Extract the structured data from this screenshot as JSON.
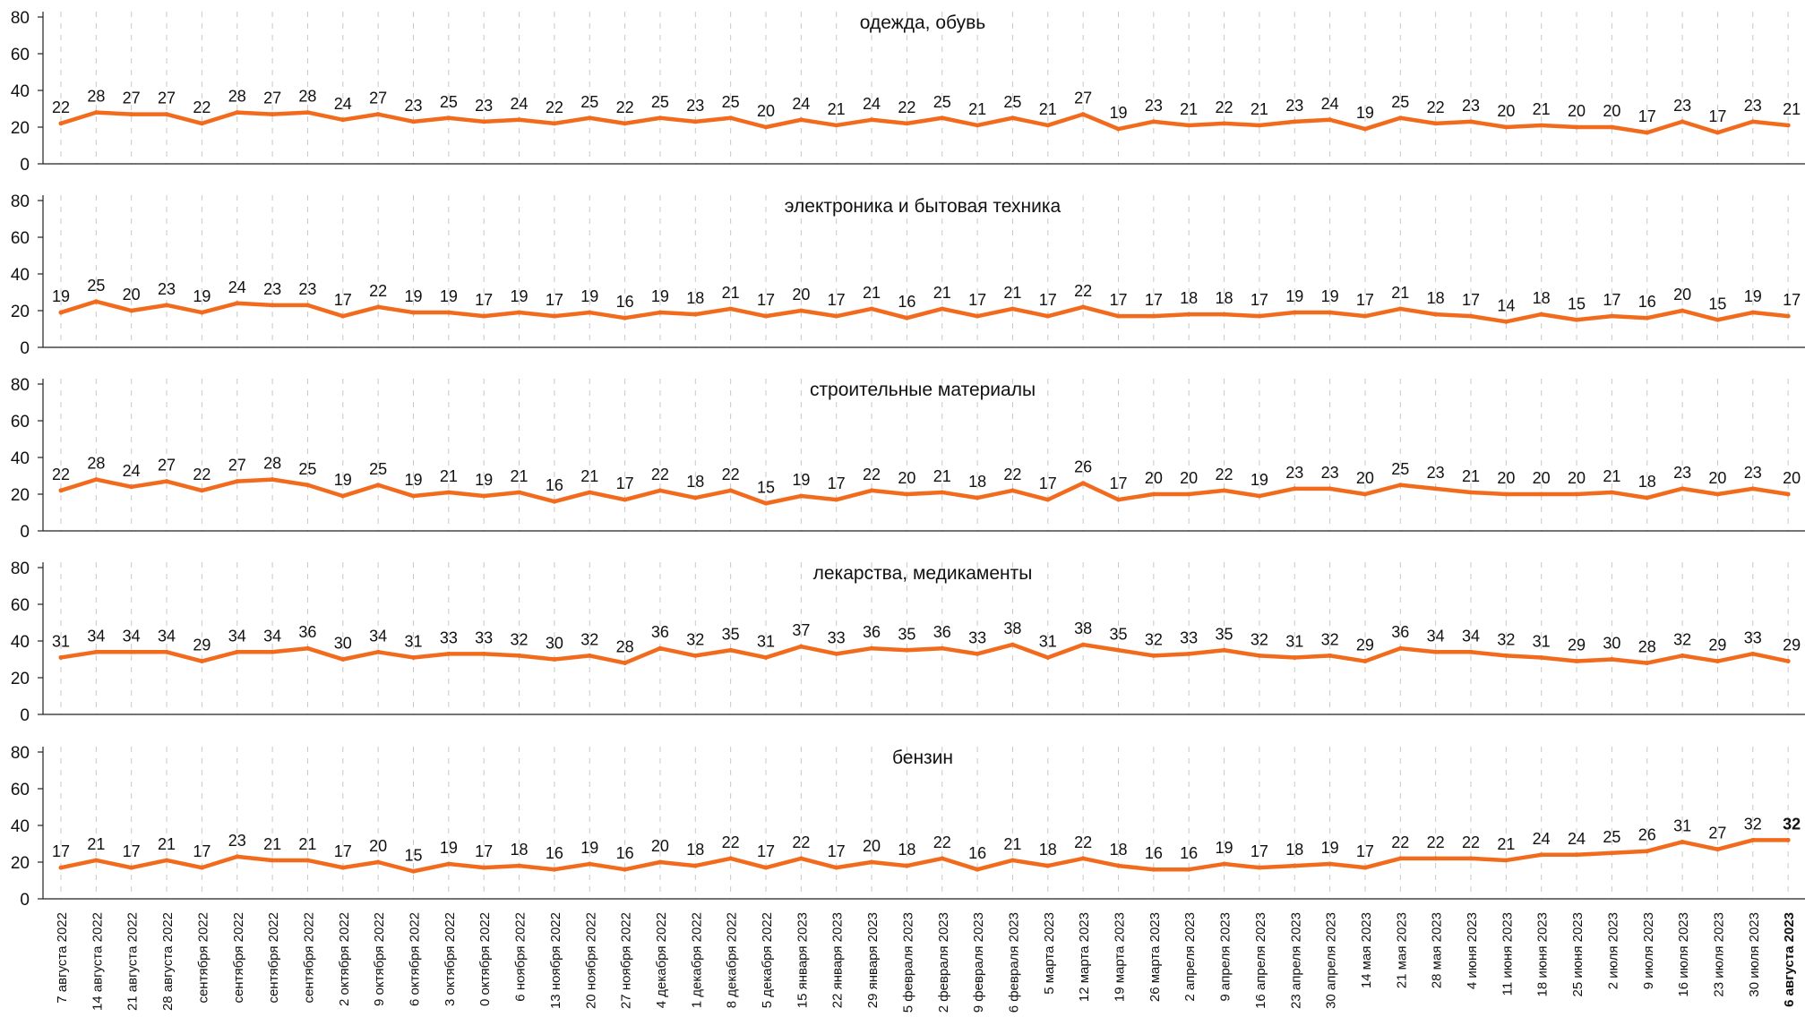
{
  "chart_data": {
    "type": "line",
    "colors": {
      "line": "#f26b1d",
      "axis": "#222222",
      "grid": "#c8c8c8",
      "text": "#111111"
    },
    "ylim": [
      0,
      80
    ],
    "yticks": [
      "0",
      "20",
      "40",
      "60",
      "80"
    ],
    "grid": "vertical dashed",
    "x": [
      "7 августа 2022",
      "14 августа 2022",
      "21 августа 2022",
      "28 августа 2022",
      "сентября 2022",
      "сентября 2022",
      "сентября 2022",
      "сентября 2022",
      "2 октября 2022",
      "9 октября 2022",
      "6 октября 2022",
      "3 октября 2022",
      "0 октября 2022",
      "6 ноября 2022",
      "13 ноября 2022",
      "20 ноября 2022",
      "27 ноября 2022",
      "4 декабря 2022",
      "1 декабря 2022",
      "8 декабря 2022",
      "5 декабря 2022",
      "15 января 2023",
      "22 января 2023",
      "29 января 2023",
      "5 февраля 2023",
      "2 февраля 2023",
      "9 февраля 2023",
      "6 февраля 2023",
      "5 марта 2023",
      "12 марта 2023",
      "19 марта 2023",
      "26 марта 2023",
      "2 апреля 2023",
      "9 апреля 2023",
      "16 апреля 2023",
      "23 апреля 2023",
      "30 апреля 2023",
      "14 мая 2023",
      "21 мая 2023",
      "28 мая 2023",
      "4 июня 2023",
      "11 июня 2023",
      "18 июня 2023",
      "25 июня 2023",
      "2 июля 2023",
      "9 июля 2023",
      "16 июля 2023",
      "23 июля 2023",
      "30 июля 2023",
      "6 августа 2023"
    ],
    "series": [
      {
        "name": "одежда, обувь",
        "values": [
          22,
          28,
          27,
          27,
          22,
          28,
          27,
          28,
          24,
          27,
          23,
          25,
          23,
          24,
          22,
          25,
          22,
          25,
          23,
          25,
          20,
          24,
          21,
          24,
          22,
          25,
          21,
          25,
          21,
          27,
          19,
          23,
          21,
          22,
          21,
          23,
          24,
          19,
          25,
          22,
          23,
          20,
          21,
          20,
          20,
          17,
          23,
          17,
          23,
          21
        ]
      },
      {
        "name": "электроника и бытовая техника",
        "values": [
          19,
          25,
          20,
          23,
          19,
          24,
          23,
          23,
          17,
          22,
          19,
          19,
          17,
          19,
          17,
          19,
          16,
          19,
          18,
          21,
          17,
          20,
          17,
          21,
          16,
          21,
          17,
          21,
          17,
          22,
          17,
          17,
          18,
          18,
          17,
          19,
          19,
          17,
          21,
          18,
          17,
          14,
          18,
          15,
          17,
          16,
          20,
          15,
          19,
          17
        ]
      },
      {
        "name": "строительные материалы",
        "values": [
          22,
          28,
          24,
          27,
          22,
          27,
          28,
          25,
          19,
          25,
          19,
          21,
          19,
          21,
          16,
          21,
          17,
          22,
          18,
          22,
          15,
          19,
          17,
          22,
          20,
          21,
          18,
          22,
          17,
          26,
          17,
          20,
          20,
          22,
          19,
          23,
          23,
          20,
          25,
          23,
          21,
          20,
          20,
          20,
          21,
          18,
          23,
          20,
          23,
          20
        ]
      },
      {
        "name": "лекарства, медикаменты",
        "values": [
          31,
          34,
          34,
          34,
          29,
          34,
          34,
          36,
          30,
          34,
          31,
          33,
          33,
          32,
          30,
          32,
          28,
          36,
          32,
          35,
          31,
          37,
          33,
          36,
          35,
          36,
          33,
          38,
          31,
          38,
          35,
          32,
          33,
          35,
          32,
          31,
          32,
          29,
          36,
          34,
          34,
          32,
          31,
          29,
          30,
          28,
          32,
          29,
          33,
          29
        ]
      },
      {
        "name": "бензин",
        "values": [
          17,
          21,
          17,
          21,
          17,
          23,
          21,
          21,
          17,
          20,
          15,
          19,
          17,
          18,
          16,
          19,
          16,
          20,
          18,
          22,
          17,
          22,
          17,
          20,
          18,
          22,
          16,
          21,
          18,
          22,
          18,
          16,
          16,
          19,
          17,
          18,
          19,
          17,
          22,
          22,
          22,
          21,
          24,
          24,
          25,
          26,
          31,
          27,
          32,
          32
        ]
      }
    ]
  }
}
